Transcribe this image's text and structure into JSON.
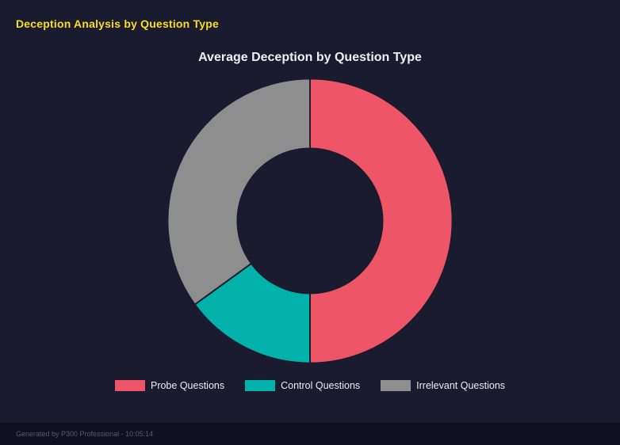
{
  "header": {
    "title": "Deception Analysis by Question Type"
  },
  "chart_data": {
    "type": "doughnut",
    "title": "Average Deception by Question Type",
    "categories": [
      "Probe Questions",
      "Control Questions",
      "Irrelevant Questions"
    ],
    "values": [
      50,
      15,
      35
    ],
    "colors": [
      "#ee5566",
      "#00b2a9",
      "#8e8e8e"
    ],
    "cutout_ratio": 0.51,
    "start_angle_deg": 0,
    "direction": "clockwise",
    "legend_position": "bottom"
  },
  "footer": {
    "text": "Generated by P300 Professional - 10:05:14"
  },
  "colors": {
    "background": "#1a1b2e",
    "footer_background": "#101120",
    "accent_yellow": "#f7df1e",
    "chart_title_text": "#f0f0f2",
    "legend_text": "#ecedef",
    "footer_text": "#575c6b"
  }
}
